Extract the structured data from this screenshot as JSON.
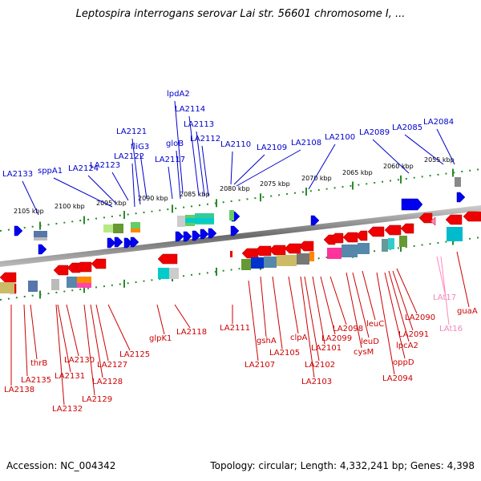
{
  "title": "Leptospira interrogans serovar Lai str. 56601 chromosome I, ...",
  "footer": {
    "accession": "Accession: NC_004342",
    "topology": "Topology: circular; Length: 4,332,241 bp; Genes: 4,398"
  },
  "scale_labels": [
    "2105 kbp",
    "2100 kbp",
    "2095 kbp",
    "2090 kbp",
    "2085 kbp",
    "2080 kbp",
    "2075 kbp",
    "2070 kbp",
    "2065 kbp",
    "2060 kbp",
    "2055 kbp"
  ],
  "forward_labels": [
    "LA2133",
    "sppA1",
    "LA2124",
    "LA2123",
    "LA2122",
    "LA2121",
    "fliG3",
    "LA2117",
    "gloB",
    "lpdA2",
    "LA2114",
    "LA2113",
    "LA2112",
    "LA2110",
    "LA2109",
    "LA2108",
    "LA2100",
    "LA2089",
    "LA2085",
    "LA2084"
  ],
  "reverse_labels": [
    "LA2138",
    "LA2135",
    "thrB",
    "LA2132",
    "LA2131",
    "LA2130",
    "LA2129",
    "LA2128",
    "LA2127",
    "LA2125",
    "glpK1",
    "LA2118",
    "LA2111",
    "LA2107",
    "gshA",
    "LA2105",
    "clpA",
    "LA2103",
    "LA2102",
    "LA2101",
    "LA2099",
    "LA2098",
    "cysM",
    "leuD",
    "leuC",
    "LA2094",
    "oppD",
    "lpcA2",
    "LA2091",
    "LA2090",
    "LAt17",
    "LAt16",
    "guaA"
  ],
  "colors": {
    "forward_gene": "#0000ee",
    "reverse_gene": "#ee0000",
    "forward_label": "#0000cc",
    "reverse_label": "#cc0000",
    "trna": "#ff88bb",
    "backbone": "#888888"
  }
}
